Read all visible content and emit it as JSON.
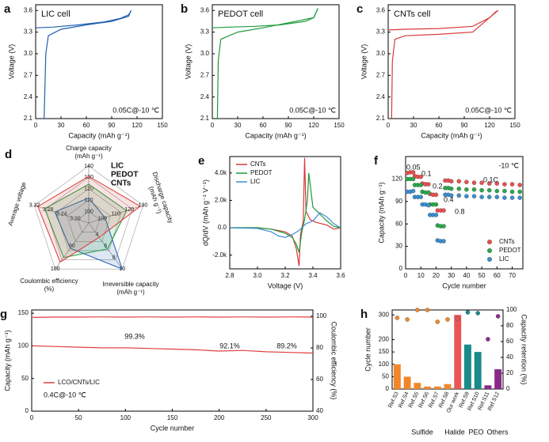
{
  "chart_data": [
    {
      "panel": "a",
      "type": "line",
      "title": "LIC cell",
      "annotations": [
        "0.05C@-10 ℃"
      ],
      "xlabel": "Capacity (mAh g⁻¹)",
      "ylabel": "Voltage (V)",
      "xlim": [
        0,
        150
      ],
      "xticks": [
        0,
        30,
        60,
        90,
        120,
        150
      ],
      "ylim": [
        2.1,
        3.68
      ],
      "yticks": [
        2.1,
        2.4,
        2.7,
        {
          "value": 3,
          "label": "3.0"
        },
        3.3,
        3.6
      ],
      "series": [
        {
          "color": "#2060b0",
          "x": [
            0,
            20,
            50,
            80,
            100,
            110,
            113
          ],
          "values": [
            3.36,
            3.37,
            3.4,
            3.44,
            3.49,
            3.54,
            3.6
          ]
        },
        {
          "color": "#2060b0",
          "x": [
            113,
            110,
            90,
            60,
            30,
            15,
            12,
            10
          ],
          "values": [
            3.6,
            3.52,
            3.45,
            3.4,
            3.34,
            3.25,
            3.0,
            2.1
          ]
        }
      ]
    },
    {
      "panel": "b",
      "type": "line",
      "title": "PEDOT cell",
      "annotations": [
        "0.05C@-10 ℃"
      ],
      "xlabel": "Capacity (mAh g⁻¹)",
      "ylabel": "Voltage (V)",
      "xlim": [
        0,
        150
      ],
      "xticks": [
        0,
        30,
        60,
        90,
        120,
        150
      ],
      "ylim": [
        2.1,
        3.68
      ],
      "yticks": [
        2.1,
        2.4,
        2.7,
        {
          "value": 3,
          "label": "3.0"
        },
        3.3,
        3.6
      ],
      "series": [
        {
          "color": "#1e9a3a",
          "x": [
            0,
            20,
            50,
            80,
            110,
            120,
            125
          ],
          "values": [
            3.36,
            3.37,
            3.38,
            3.4,
            3.45,
            3.5,
            3.63
          ]
        },
        {
          "color": "#1e9a3a",
          "x": [
            125,
            120,
            90,
            60,
            30,
            10,
            7,
            6
          ],
          "values": [
            3.63,
            3.5,
            3.43,
            3.36,
            3.3,
            3.2,
            2.9,
            2.1
          ]
        }
      ]
    },
    {
      "panel": "c",
      "type": "line",
      "title": "CNTs cell",
      "annotations": [
        "0.05C@-10 ℃"
      ],
      "xlabel": "Capacity (mAh g⁻¹)",
      "ylabel": "Voltage (V)",
      "xlim": [
        0,
        150
      ],
      "xticks": [
        0,
        30,
        60,
        90,
        120,
        150
      ],
      "ylim": [
        2.1,
        3.68
      ],
      "yticks": [
        2.1,
        2.4,
        2.7,
        {
          "value": 3,
          "label": "3.0"
        },
        3.3,
        3.6
      ],
      "series": [
        {
          "color": "#d83a3a",
          "x": [
            0,
            20,
            60,
            100,
            120,
            127,
            130
          ],
          "values": [
            3.33,
            3.34,
            3.35,
            3.38,
            3.5,
            3.58,
            3.6
          ]
        },
        {
          "color": "#d83a3a",
          "x": [
            130,
            125,
            100,
            60,
            20,
            8,
            5,
            4
          ],
          "values": [
            3.6,
            3.55,
            3.3,
            3.27,
            3.25,
            3.2,
            2.9,
            2.1
          ]
        }
      ]
    },
    {
      "panel": "d",
      "type": "radar",
      "axes": [
        {
          "label": "Charge capacity",
          "unit": "(mAh g⁻¹)",
          "lim": [
            90,
            140
          ],
          "ticks": [
            100,
            110,
            120,
            130,
            140
          ]
        },
        {
          "label": "Discharge capacity",
          "unit": "(mAh g⁻¹)",
          "lim": [
            90,
            130
          ],
          "ticks": [
            100,
            110,
            120,
            130
          ]
        },
        {
          "label": "Irreversible capacity",
          "unit": "(mAh g⁻¹)",
          "lim": [
            2,
            10
          ],
          "ticks": [
            4,
            6,
            8,
            10
          ]
        },
        {
          "label": "Coulombic efficiency",
          "unit": "(%)",
          "lim": [
            80,
            100
          ],
          "ticks": [
            90,
            100
          ]
        },
        {
          "label": "Average voltage",
          "lim": [
            3.16,
            3.32
          ],
          "ticks": [
            {
              "value": 3.2,
              "label": "3.20"
            },
            3.24,
            3.28,
            3.32
          ]
        }
      ],
      "series": [
        {
          "name": "LIC",
          "color": "#2060b0",
          "values": [
            112,
            102,
            10,
            91,
            3.26
          ]
        },
        {
          "name": "PEDOT",
          "color": "#1e9a3a",
          "values": [
            124,
            118,
            6.5,
            95,
            3.29
          ]
        },
        {
          "name": "CNTs",
          "color": "#d83a3a",
          "values": [
            131,
            128,
            4.5,
            97,
            3.31
          ]
        }
      ]
    },
    {
      "panel": "e",
      "type": "line",
      "xlabel": "Voltage (V)",
      "ylabel": "dQ/dV (mAh g⁻¹ V⁻¹)",
      "xlim": [
        2.8,
        3.6
      ],
      "xticks": [
        2.8,
        {
          "value": 3,
          "label": "3.0"
        },
        3.2,
        3.4,
        3.6
      ],
      "ylim": [
        -3000,
        5200
      ],
      "yticks": [
        {
          "value": -2000,
          "label": "-2.0k"
        },
        {
          "value": 0,
          "label": "0.0"
        },
        {
          "value": 2000,
          "label": "2.0k"
        },
        {
          "value": 4000,
          "label": "4.0k"
        }
      ],
      "series": [
        {
          "name": "CNTs",
          "color": "#d83a3a",
          "x": [
            2.8,
            3.0,
            3.1,
            3.2,
            3.25,
            3.28,
            3.3,
            3.31,
            3.33,
            3.34,
            3.35,
            3.38,
            3.42,
            3.5,
            3.55,
            3.6
          ],
          "values": [
            0,
            0,
            -100,
            -300,
            -600,
            -1500,
            -2800,
            -500,
            500,
            5100,
            1200,
            600,
            400,
            200,
            -100,
            0
          ]
        },
        {
          "name": "PEDOT",
          "color": "#1e9a3a",
          "x": [
            2.8,
            3.0,
            3.1,
            3.2,
            3.25,
            3.28,
            3.3,
            3.32,
            3.34,
            3.36,
            3.37,
            3.4,
            3.45,
            3.5,
            3.55,
            3.6
          ],
          "values": [
            0,
            0,
            -100,
            -400,
            -700,
            -1200,
            -1800,
            -300,
            600,
            2000,
            4000,
            1500,
            1000,
            500,
            100,
            0
          ]
        },
        {
          "name": "LIC",
          "color": "#3a8fd0",
          "x": [
            2.8,
            3.0,
            3.1,
            3.15,
            3.2,
            3.25,
            3.3,
            3.32,
            3.35,
            3.4,
            3.45,
            3.5,
            3.55,
            3.6
          ],
          "values": [
            0,
            -50,
            -300,
            -600,
            -700,
            -500,
            -200,
            0,
            300,
            500,
            1100,
            800,
            300,
            0
          ]
        }
      ]
    },
    {
      "panel": "f",
      "type": "scatter",
      "xlabel": "Cycle number",
      "ylabel": "Capacity (mAh g⁻¹)",
      "annotations": [
        "-10 ℃",
        "0.05",
        "0.1",
        "0.2",
        "0.4",
        "0.8",
        "0.1C"
      ],
      "xlim": [
        0,
        77
      ],
      "xticks": [
        0,
        10,
        20,
        30,
        40,
        50,
        60,
        70
      ],
      "ylim": [
        0,
        150
      ],
      "yticks": [
        0,
        30,
        60,
        90,
        120
      ],
      "x": [
        1,
        3,
        5,
        6,
        8,
        10,
        11,
        13,
        15,
        16,
        18,
        20,
        21,
        23,
        25,
        26,
        28,
        30,
        35,
        40,
        45,
        50,
        55,
        60,
        65,
        70,
        75
      ],
      "series": [
        {
          "name": "CNTs",
          "color": "#e85050",
          "values": [
            128,
            129,
            129,
            124,
            123,
            123,
            114,
            113,
            113,
            100,
            99,
            99,
            78,
            78,
            78,
            118,
            118,
            117,
            117,
            116,
            115,
            115,
            114,
            114,
            113,
            113,
            112
          ]
        },
        {
          "name": "PEDOT",
          "color": "#2aa84a",
          "values": [
            120,
            120,
            120,
            112,
            112,
            112,
            103,
            102,
            102,
            86,
            86,
            86,
            58,
            57,
            57,
            108,
            108,
            107,
            107,
            106,
            106,
            105,
            105,
            104,
            104,
            103,
            103
          ]
        },
        {
          "name": "LIC",
          "color": "#3a8fd0",
          "values": [
            103,
            103,
            104,
            96,
            96,
            96,
            86,
            86,
            85,
            72,
            72,
            72,
            38,
            37,
            37,
            99,
            99,
            98,
            98,
            97,
            97,
            96,
            96,
            96,
            95,
            95,
            95
          ]
        }
      ]
    },
    {
      "panel": "g",
      "type": "line",
      "xlabel": "Cycle number",
      "ylabel": "Capacity (mAh g⁻¹)",
      "y2label": "Coulombic efficiency (%)",
      "annotations": [
        "99.3%",
        "92.1%",
        "89.2%",
        "0.4C@-10 ℃"
      ],
      "xlim": [
        0,
        300
      ],
      "xticks": [
        0,
        50,
        100,
        150,
        200,
        250,
        300
      ],
      "ylim": [
        0,
        155
      ],
      "yticks": [
        0,
        50,
        100,
        150
      ],
      "y2lim": [
        40,
        104
      ],
      "y2ticks": [
        40,
        60,
        80,
        100
      ],
      "x": [
        1,
        25,
        50,
        75,
        100,
        125,
        150,
        175,
        200,
        225,
        250,
        275,
        300
      ],
      "series": [
        {
          "name": "LCO/CNTs/LIC",
          "color": "#e04040",
          "values": [
            100,
            99,
            98,
            97,
            97,
            96,
            95,
            94,
            92,
            93,
            91,
            90,
            89
          ]
        },
        {
          "color": "#e04040",
          "axis": "y2",
          "values": [
            99.3,
            99.5,
            99.5,
            99.6,
            99.5,
            99.6,
            99.5,
            99.6,
            99.5,
            99.6,
            99.5,
            99.6,
            99.5
          ]
        }
      ]
    },
    {
      "panel": "h",
      "type": "bar",
      "ylabel": "Cycle number",
      "y2label": "Capacity retention (%)",
      "annotations": [
        "Sulfide",
        "Halide",
        "PEO",
        "Others"
      ],
      "categories": [
        "Ref.S3",
        "Ref.S4",
        "Ref.S5",
        "Ref.S6",
        "Ref.S7",
        "Ref.S8",
        "Our work",
        "Ref.S9",
        "Ref.S10",
        "Ref.S11",
        "Ref.S12"
      ],
      "values": [
        100,
        50,
        25,
        10,
        10,
        20,
        300,
        180,
        150,
        15,
        80
      ],
      "colors": [
        "#f0882b",
        "#f0882b",
        "#f0882b",
        "#f0882b",
        "#f0882b",
        "#f0882b",
        "#e85555",
        "#1a8a8a",
        "#1a8a8a",
        "#8a2a8a",
        "#8a2a8a"
      ],
      "ylim": [
        0,
        320
      ],
      "yticks": [
        0,
        50,
        100,
        150,
        200,
        300
      ],
      "y2lim": [
        0,
        100
      ],
      "y2ticks": [
        0,
        20,
        40,
        60,
        80,
        100
      ],
      "series": [
        {
          "type": "scatter",
          "axis": "y2",
          "values": [
            90,
            88,
            100,
            100,
            85,
            88,
            89.2,
            97,
            96,
            63,
            92
          ]
        }
      ]
    }
  ]
}
